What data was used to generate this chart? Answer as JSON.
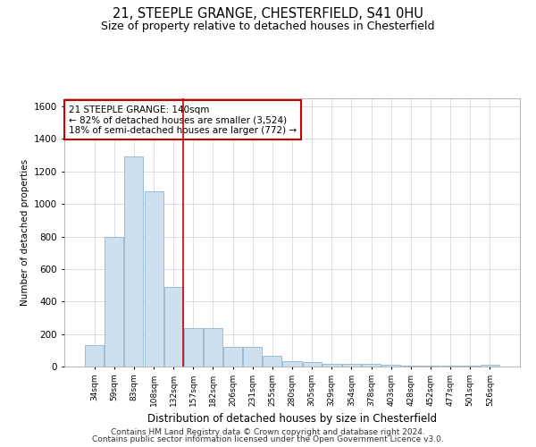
{
  "title": "21, STEEPLE GRANGE, CHESTERFIELD, S41 0HU",
  "subtitle": "Size of property relative to detached houses in Chesterfield",
  "xlabel": "Distribution of detached houses by size in Chesterfield",
  "ylabel": "Number of detached properties",
  "bar_color": "#cce0f0",
  "bar_edge_color": "#7aaac8",
  "categories": [
    "34sqm",
    "59sqm",
    "83sqm",
    "108sqm",
    "132sqm",
    "157sqm",
    "182sqm",
    "206sqm",
    "231sqm",
    "255sqm",
    "280sqm",
    "305sqm",
    "329sqm",
    "354sqm",
    "378sqm",
    "403sqm",
    "428sqm",
    "452sqm",
    "477sqm",
    "501sqm",
    "526sqm"
  ],
  "values": [
    130,
    800,
    1290,
    1080,
    490,
    235,
    235,
    120,
    120,
    65,
    35,
    25,
    15,
    15,
    15,
    10,
    5,
    5,
    5,
    5,
    10
  ],
  "ylim": [
    0,
    1650
  ],
  "yticks": [
    0,
    200,
    400,
    600,
    800,
    1000,
    1200,
    1400,
    1600
  ],
  "vline_x": 4.5,
  "annotation_text": "21 STEEPLE GRANGE: 140sqm\n← 82% of detached houses are smaller (3,524)\n18% of semi-detached houses are larger (772) →",
  "annotation_box_color": "#ffffff",
  "annotation_box_edge": "#cc0000",
  "vline_color": "#cc0000",
  "footer1": "Contains HM Land Registry data © Crown copyright and database right 2024.",
  "footer2": "Contains public sector information licensed under the Open Government Licence v3.0.",
  "background_color": "#ffffff",
  "grid_color": "#d0d0d8"
}
